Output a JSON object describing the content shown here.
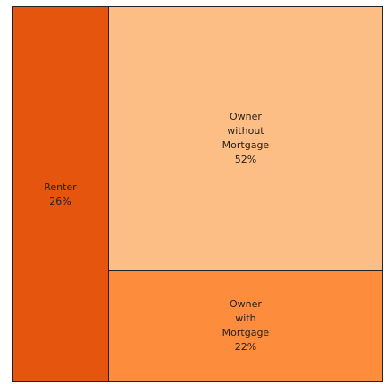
{
  "chart_data": {
    "type": "treemap",
    "categories": [
      "Renter",
      "Owner without Mortgage",
      "Owner with Mortgage"
    ],
    "values": [
      26,
      52,
      22
    ],
    "value_labels": [
      "26%",
      "52%",
      "22%"
    ],
    "colors": [
      "#e6550d",
      "#fdbe85",
      "#fd8d3c"
    ]
  }
}
